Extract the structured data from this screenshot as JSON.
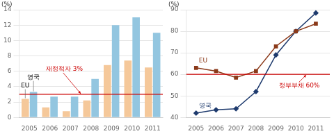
{
  "chart_data": [
    {
      "type": "bar",
      "categories": [
        "2005",
        "2006",
        "2007",
        "2008",
        "2009",
        "2010",
        "2011"
      ],
      "y_label": "(%)",
      "series": [
        {
          "name": "EU",
          "color": "#F5C89A",
          "values": [
            2.4,
            1.3,
            0.8,
            2.2,
            6.8,
            7.4,
            6.5
          ]
        },
        {
          "name": "영국",
          "color": "#93C6E0",
          "values": [
            3.3,
            2.7,
            2.7,
            5.0,
            12.0,
            13.0,
            11.0
          ]
        }
      ],
      "ylim": [
        0,
        14
      ],
      "yticks": [
        0,
        2,
        4,
        6,
        8,
        10,
        12,
        14
      ],
      "grid": true,
      "annotations": [
        {
          "text": "재정적자 3%",
          "y": 3,
          "color": "#cc0000"
        }
      ]
    },
    {
      "type": "line",
      "x": [
        2005,
        2006,
        2007,
        2008,
        2009,
        2010,
        2011
      ],
      "xlim": [
        2004.5,
        2011.7
      ],
      "xticks": [
        2005,
        2006,
        2007,
        2008,
        2009,
        2010,
        2011
      ],
      "y_label": "(%)",
      "series": [
        {
          "name": "EU",
          "color": "#8B3A1A",
          "marker": "square",
          "values": [
            63.0,
            61.5,
            58.5,
            61.5,
            73.0,
            80.0,
            83.5
          ]
        },
        {
          "name": "영국",
          "color": "#1F3B6E",
          "marker": "diamond",
          "values": [
            42.0,
            43.5,
            44.0,
            52.0,
            69.0,
            80.0,
            88.5
          ]
        }
      ],
      "ylim": [
        40,
        90
      ],
      "yticks": [
        40,
        50,
        60,
        70,
        80,
        90
      ],
      "grid": true,
      "annotations": [
        {
          "text": "정부부채 60%",
          "y": 60,
          "color": "#cc0000"
        }
      ]
    }
  ]
}
